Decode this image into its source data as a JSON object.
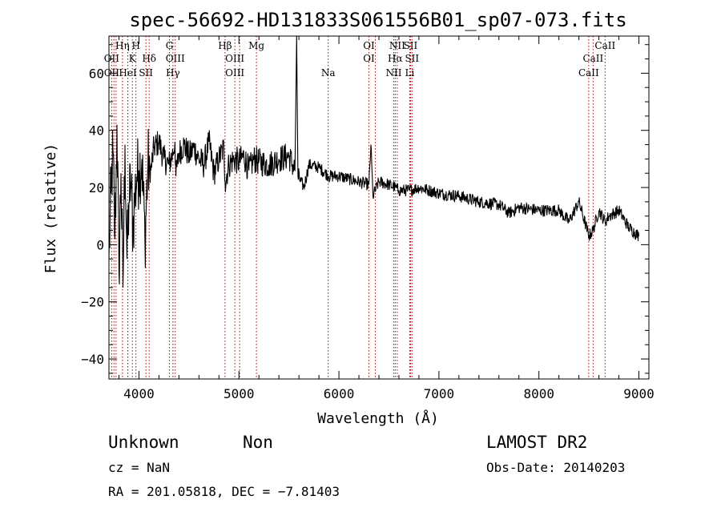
{
  "chart_data": {
    "type": "line",
    "title": "spec-56692-HD131833S061556B01_sp07-073.fits",
    "xlabel": "Wavelength (Å)",
    "ylabel": "Flux (relative)",
    "xlim": [
      3700,
      9100
    ],
    "ylim": [
      -47,
      73
    ],
    "xticks": [
      4000,
      5000,
      6000,
      7000,
      8000,
      9000
    ],
    "xticklabels": [
      "4000",
      "5000",
      "6000",
      "7000",
      "8000",
      "9000"
    ],
    "yticks": [
      -40,
      -20,
      0,
      20,
      40,
      60
    ],
    "yticklabels": [
      "−40",
      "−20",
      "0",
      "20",
      "40",
      "60"
    ],
    "grid": false,
    "series": [
      {
        "x": [
          3700,
          3720,
          3740,
          3760,
          3780,
          3800,
          3820,
          3840,
          3860,
          3880,
          3900,
          3920,
          3940,
          3960,
          3980,
          4000,
          4030,
          4060,
          4090,
          4120,
          4150,
          4200,
          4250,
          4300,
          4340,
          4360,
          4370,
          4400,
          4450,
          4500,
          4550,
          4600,
          4650,
          4700,
          4750,
          4800,
          4850,
          4861,
          4900,
          4950,
          5000,
          5050,
          5100,
          5150,
          5200,
          5300,
          5400,
          5500,
          5560,
          5577,
          5590,
          5650,
          5700,
          5800,
          5900,
          6000,
          6100,
          6200,
          6300,
          6320,
          6340,
          6400,
          6500,
          6563,
          6600,
          6700,
          6800,
          6900,
          7000,
          7200,
          7400,
          7600,
          7700,
          7800,
          8000,
          8200,
          8300,
          8400,
          8500,
          8542,
          8600,
          8662,
          8700,
          8800,
          8900,
          9000
        ],
        "y": [
          -5,
          18,
          32,
          2,
          42,
          -10,
          25,
          -15,
          35,
          -5,
          15,
          22,
          5,
          18,
          24,
          26,
          30,
          2,
          28,
          26,
          34,
          36,
          30,
          28,
          32,
          36,
          24,
          32,
          35,
          31,
          34,
          30,
          28,
          36,
          25,
          30,
          34,
          22,
          28,
          30,
          29,
          31,
          26,
          30,
          29,
          28,
          30,
          31,
          26,
          100,
          24,
          20,
          28,
          27,
          24,
          24,
          23,
          22,
          21,
          35,
          17,
          22,
          21,
          20,
          19,
          19,
          20,
          19,
          18,
          17,
          15,
          14,
          11,
          13,
          12,
          12,
          8,
          15,
          3,
          5,
          12,
          8,
          10,
          12,
          6,
          3
        ]
      }
    ],
    "line_labels": [
      {
        "text": "Hη",
        "row": 1,
        "wl": 3835
      },
      {
        "text": "H",
        "row": 1,
        "wl": 3970
      },
      {
        "text": "G",
        "row": 1,
        "wl": 4305
      },
      {
        "text": "Hβ",
        "row": 1,
        "wl": 4861
      },
      {
        "text": "Mg",
        "row": 1,
        "wl": 5175
      },
      {
        "text": "OI",
        "row": 1,
        "wl": 6300
      },
      {
        "text": "NII",
        "row": 1,
        "wl": 6583
      },
      {
        "text": "SII",
        "row": 1,
        "wl": 6716
      },
      {
        "text": "CaII",
        "row": 1,
        "wl": 8662
      },
      {
        "text": "OII",
        "row": 2,
        "wl": 3727
      },
      {
        "text": "K",
        "row": 2,
        "wl": 3934
      },
      {
        "text": "Hδ",
        "row": 2,
        "wl": 4102
      },
      {
        "text": "OIII",
        "row": 2,
        "wl": 4363
      },
      {
        "text": "OIII",
        "row": 2,
        "wl": 4959
      },
      {
        "text": "OI",
        "row": 2,
        "wl": 6300
      },
      {
        "text": "Hα",
        "row": 2,
        "wl": 6563
      },
      {
        "text": "SII",
        "row": 2,
        "wl": 6731
      },
      {
        "text": "CaII",
        "row": 2,
        "wl": 8542
      },
      {
        "text": "OII",
        "row": 3,
        "wl": 3727
      },
      {
        "text": "HeI",
        "row": 3,
        "wl": 3889
      },
      {
        "text": "SII",
        "row": 3,
        "wl": 4070
      },
      {
        "text": "Hγ",
        "row": 3,
        "wl": 4340
      },
      {
        "text": "OIII",
        "row": 3,
        "wl": 4959
      },
      {
        "text": "Na",
        "row": 3,
        "wl": 5893
      },
      {
        "text": "NII",
        "row": 3,
        "wl": 6548
      },
      {
        "text": "Li",
        "row": 3,
        "wl": 6708
      },
      {
        "text": "CaII",
        "row": 3,
        "wl": 8498
      }
    ],
    "line_markers": [
      3727,
      3750,
      3771,
      3835,
      3889,
      3934,
      3970,
      4070,
      4102,
      4305,
      4340,
      4363,
      4861,
      4959,
      5007,
      5175,
      5893,
      6300,
      6364,
      6548,
      6563,
      6583,
      6708,
      6716,
      6731,
      8498,
      8542,
      8662
    ],
    "marker_color": "#b00000"
  },
  "footer": {
    "left_line1_a": "Unknown",
    "left_line1_b": "Non",
    "cz": "cz = NaN",
    "radec": "RA = 201.05818, DEC =  −7.81403",
    "survey": "LAMOST DR2",
    "obsdate": "Obs-Date: 20140203"
  }
}
